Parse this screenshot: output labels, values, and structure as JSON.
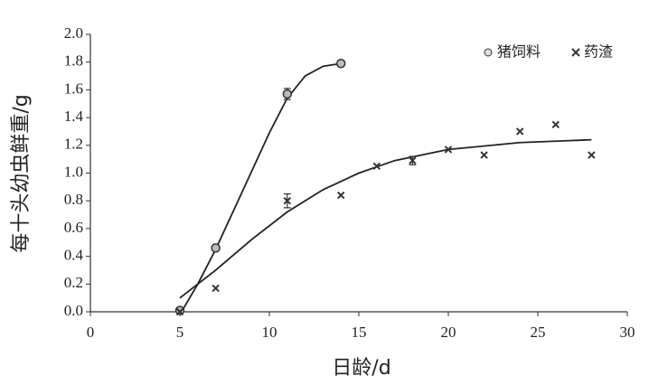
{
  "chart_data": {
    "type": "scatter",
    "x_label": "日龄/d",
    "y_label": "每十头幼虫鲜重/g",
    "xlim": [
      0,
      30
    ],
    "xticks": [
      0,
      5,
      10,
      15,
      20,
      25,
      30
    ],
    "ylim": [
      0,
      2
    ],
    "yticks": [
      {
        "value": 0,
        "label": "0.0"
      },
      0.2,
      0.4,
      0.6,
      0.8,
      {
        "value": 1,
        "label": "1.0"
      },
      1.2,
      1.4,
      1.6,
      1.8,
      {
        "value": 2,
        "label": "2.0"
      }
    ],
    "series": [
      {
        "name": "猪饲料",
        "color": "#333333",
        "marker": "circle",
        "x": [
          5,
          7,
          11,
          14
        ],
        "values": [
          0.01,
          0.46,
          1.57,
          1.79
        ],
        "errors": [
          0.01,
          0.02,
          0.04,
          0.02
        ]
      },
      {
        "name": "药渣",
        "color": "#333333",
        "marker": "cross",
        "x": [
          5,
          7,
          11,
          14,
          16,
          18,
          20,
          22,
          24,
          26,
          28
        ],
        "values": [
          0,
          0.17,
          0.8,
          0.84,
          1.05,
          1.09,
          1.17,
          1.13,
          1.3,
          1.35,
          1.13
        ],
        "errors": [
          null,
          null,
          0.05,
          null,
          null,
          0.03,
          null,
          null,
          null,
          null,
          null
        ]
      }
    ],
    "fits": [
      {
        "x": [
          5,
          6,
          7,
          8,
          9,
          10,
          11,
          12,
          13,
          14
        ],
        "values": [
          -0.02,
          0.2,
          0.45,
          0.73,
          1.01,
          1.29,
          1.54,
          1.7,
          1.77,
          1.79
        ]
      },
      {
        "x": [
          5,
          7,
          9,
          11,
          13,
          15,
          17,
          20,
          24,
          28
        ],
        "values": [
          0.1,
          0.3,
          0.52,
          0.72,
          0.88,
          1.0,
          1.09,
          1.17,
          1.22,
          1.24
        ]
      }
    ]
  }
}
